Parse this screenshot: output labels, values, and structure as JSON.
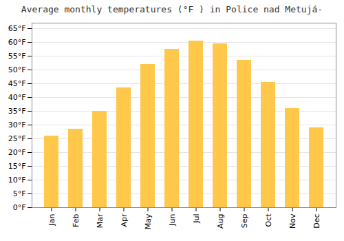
{
  "chart_data": {
    "type": "bar",
    "title": "Average monthly temperatures (°F ) in Police nad Metujá-",
    "categories": [
      "Jan",
      "Feb",
      "Mar",
      "Apr",
      "May",
      "Jun",
      "Jul",
      "Aug",
      "Sep",
      "Oct",
      "Nov",
      "Dec"
    ],
    "values": [
      26,
      28.5,
      35,
      43.5,
      52,
      57.5,
      60.5,
      59.5,
      53.5,
      45.5,
      36,
      29
    ],
    "color": "#FFC84A",
    "ylim": [
      0,
      67
    ],
    "yticks": [
      {
        "value": 0,
        "label": "0°F"
      },
      {
        "value": 5,
        "label": "5°F"
      },
      {
        "value": 10,
        "label": "10°F"
      },
      {
        "value": 15,
        "label": "15°F"
      },
      {
        "value": 20,
        "label": "20°F"
      },
      {
        "value": 25,
        "label": "25°F"
      },
      {
        "value": 30,
        "label": "30°F"
      },
      {
        "value": 35,
        "label": "35°F"
      },
      {
        "value": 40,
        "label": "40°F"
      },
      {
        "value": 45,
        "label": "45°F"
      },
      {
        "value": 50,
        "label": "50°F"
      },
      {
        "value": 55,
        "label": "55°F"
      },
      {
        "value": 60,
        "label": "60°F"
      },
      {
        "value": 65,
        "label": "65°F"
      }
    ],
    "grid": true
  }
}
